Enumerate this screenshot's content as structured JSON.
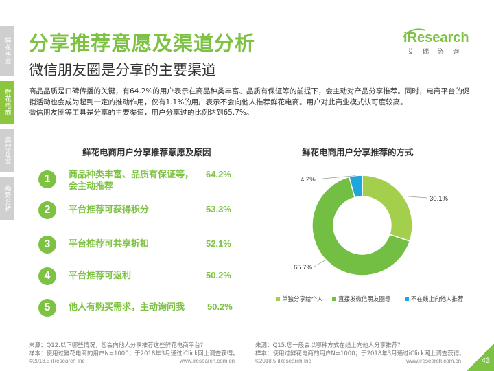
{
  "side_nav": [
    "鲜花事业",
    "鲜花电商",
    "典型企业",
    "趋势分析"
  ],
  "title": "分享推荐意愿及渠道分析",
  "subtitle": "微信朋友圈是分享的主要渠道",
  "logo": {
    "main_i": "i",
    "main_rest": "Research",
    "sub": "艾瑞咨询"
  },
  "body": [
    "商品品质是口碑传播的关键，有64.2%的用户表示在商品种类丰富、品质有保证等的前提下，会主动对产品分享推荐。同时，电商平台的促销活动也会成为起到一定的推动作用，仅有1.1%的用户表示不会向他人推荐鲜花电商。用户对此商业模式认可度较高。",
    "微信朋友圈等工具是分享的主要渠道，用户分享过的比例达到65.7%。"
  ],
  "left_section_title": "鲜花电商用户分享推荐意愿及原因",
  "right_section_title": "鲜花电商用户分享推荐的方式",
  "reasons": [
    {
      "num": "1",
      "label": "商品种类丰富、品质有保证等，",
      "label2": "会主动推荐",
      "value": "64.2%"
    },
    {
      "num": "2",
      "label": "平台推荐可获得积分",
      "label2": "",
      "value": "53.3%"
    },
    {
      "num": "3",
      "label": "平台推荐可共享折扣",
      "label2": "",
      "value": "52.1%"
    },
    {
      "num": "4",
      "label": "平台推荐可返利",
      "label2": "",
      "value": "50.2%"
    },
    {
      "num": "5",
      "label": "他人有购买需求，主动询问我",
      "label2": "",
      "value": "50.2%"
    }
  ],
  "chart_data": {
    "type": "pie",
    "title": "鲜花电商用户分享推荐的方式",
    "categories": [
      "单独分享给个人",
      "直接发微信朋友圈等",
      "不在线上向他人推荐"
    ],
    "values": [
      30.1,
      65.7,
      4.2
    ],
    "value_labels": [
      "30.1%",
      "65.7%",
      "4.2%"
    ],
    "colors": [
      "#a3cf4c",
      "#72bf44",
      "#1ea6de"
    ],
    "donut": true,
    "legend_position": "bottom"
  },
  "source_left": [
    "来源：Q12.以下哪些情况，您会向他人分享推荐这些鲜花电商平台？",
    "样本：使用过鲜花电商的用户N=1000；于2018年3月通过iClick网上调查获得。"
  ],
  "source_right": [
    "来源：Q15.您一般会以哪种方式在线上向他人分享推荐？",
    "样本：使用过鲜花电商的用户N=1000；于2018年3月通过iClick网上调查获得。"
  ],
  "footer": {
    "copyright": "©2018.5 iResearch Inc",
    "url": "www.iresearch.com.cn",
    "page": "43"
  }
}
